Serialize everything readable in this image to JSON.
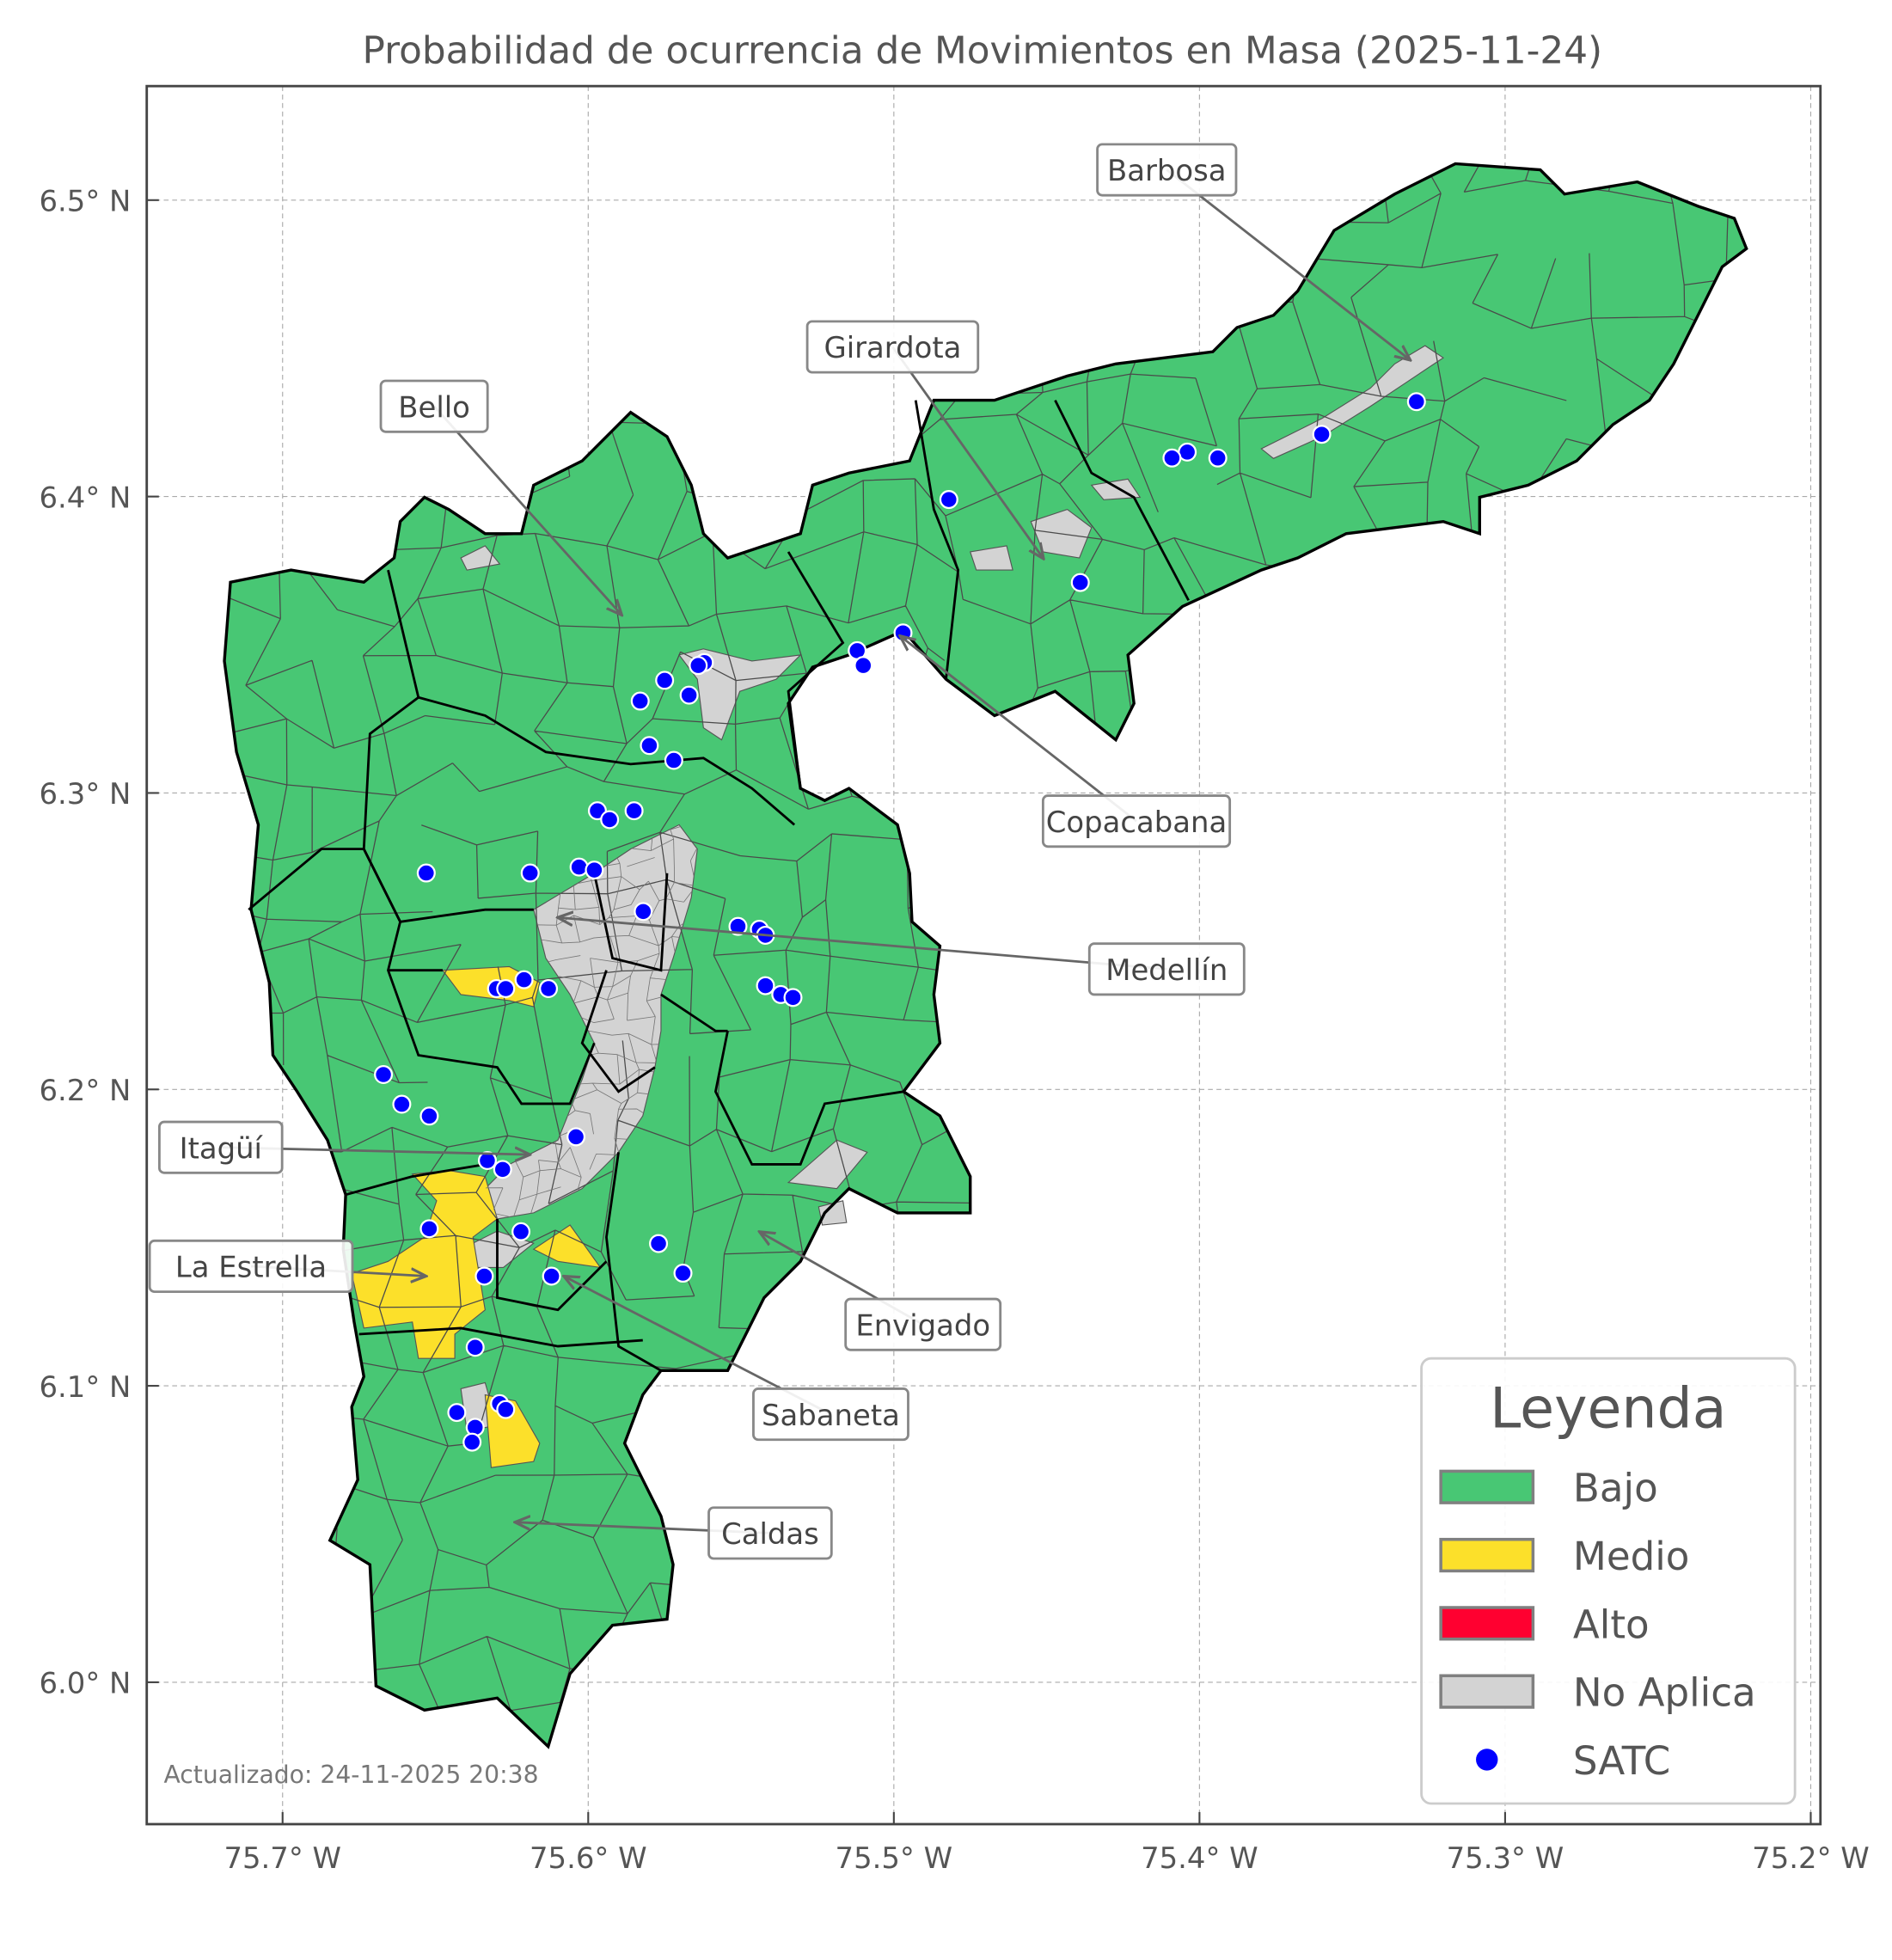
{
  "title": "Probabilidad de ocurrencia de Movimientos en Masa (2025-11-24)",
  "footer": "Actualizado: 24-11-2025 20:38",
  "axes": {
    "xlim": [
      -75.744,
      -75.197
    ],
    "ylim": [
      5.952,
      6.538
    ],
    "grid": true,
    "x_ticks": [
      {
        "value": -75.7,
        "label": "75.7° W"
      },
      {
        "value": -75.6,
        "label": "75.6° W"
      },
      {
        "value": -75.5,
        "label": "75.5° W"
      },
      {
        "value": -75.4,
        "label": "75.4° W"
      },
      {
        "value": -75.3,
        "label": "75.3° W"
      },
      {
        "value": -75.2,
        "label": "75.2° W"
      }
    ],
    "y_ticks": [
      {
        "value": 6.5,
        "label": "6.5° N"
      },
      {
        "value": 6.4,
        "label": "6.4° N"
      },
      {
        "value": 6.3,
        "label": "6.3° N"
      },
      {
        "value": 6.2,
        "label": "6.2° N"
      },
      {
        "value": 6.1,
        "label": "6.1° N"
      },
      {
        "value": 6.0,
        "label": "6.0° N"
      }
    ]
  },
  "legend": {
    "title": "Leyenda",
    "placement": "bottom-right",
    "items": [
      {
        "label": "Bajo",
        "color": "#48c774",
        "type": "patch"
      },
      {
        "label": "Medio",
        "color": "#fce02a",
        "type": "patch"
      },
      {
        "label": "Alto",
        "color": "#ff0030",
        "type": "patch"
      },
      {
        "label": "No Aplica",
        "color": "#d3d3d3",
        "type": "patch"
      },
      {
        "label": "SATC",
        "color": "#0000ff",
        "type": "point"
      }
    ]
  },
  "municipality_labels": [
    {
      "name": "Barbosa",
      "lon": -75.331,
      "lat": 6.446
    },
    {
      "name": "Girardota",
      "lon": -75.451,
      "lat": 6.379
    },
    {
      "name": "Bello",
      "lon": -75.589,
      "lat": 6.36
    },
    {
      "name": "Copacabana",
      "lon": -75.498,
      "lat": 6.353
    },
    {
      "name": "Medellín",
      "lon": -75.61,
      "lat": 6.258
    },
    {
      "name": "Itagüí",
      "lon": -75.619,
      "lat": 6.178
    },
    {
      "name": "La Estrella",
      "lon": -75.653,
      "lat": 6.137
    },
    {
      "name": "Envigado",
      "lon": -75.544,
      "lat": 6.152
    },
    {
      "name": "Sabaneta",
      "lon": -75.608,
      "lat": 6.137
    },
    {
      "name": "Caldas",
      "lon": -75.624,
      "lat": 6.054
    }
  ],
  "satc_points": [
    [
      -75.329,
      6.432
    ],
    [
      -75.36,
      6.421
    ],
    [
      -75.394,
      6.413
    ],
    [
      -75.404,
      6.415
    ],
    [
      -75.409,
      6.413
    ],
    [
      -75.482,
      6.399
    ],
    [
      -75.439,
      6.371
    ],
    [
      -75.497,
      6.354
    ],
    [
      -75.512,
      6.348
    ],
    [
      -75.51,
      6.343
    ],
    [
      -75.562,
      6.344
    ],
    [
      -75.564,
      6.343
    ],
    [
      -75.575,
      6.338
    ],
    [
      -75.583,
      6.331
    ],
    [
      -75.567,
      6.333
    ],
    [
      -75.58,
      6.316
    ],
    [
      -75.572,
      6.311
    ],
    [
      -75.597,
      6.294
    ],
    [
      -75.593,
      6.291
    ],
    [
      -75.585,
      6.294
    ],
    [
      -75.653,
      6.273
    ],
    [
      -75.619,
      6.273
    ],
    [
      -75.603,
      6.275
    ],
    [
      -75.598,
      6.274
    ],
    [
      -75.582,
      6.26
    ],
    [
      -75.551,
      6.255
    ],
    [
      -75.544,
      6.254
    ],
    [
      -75.542,
      6.252
    ],
    [
      -75.542,
      6.235
    ],
    [
      -75.537,
      6.232
    ],
    [
      -75.533,
      6.231
    ],
    [
      -75.621,
      6.237
    ],
    [
      -75.63,
      6.234
    ],
    [
      -75.627,
      6.234
    ],
    [
      -75.613,
      6.234
    ],
    [
      -75.667,
      6.205
    ],
    [
      -75.661,
      6.195
    ],
    [
      -75.652,
      6.191
    ],
    [
      -75.604,
      6.184
    ],
    [
      -75.633,
      6.176
    ],
    [
      -75.628,
      6.173
    ],
    [
      -75.652,
      6.153
    ],
    [
      -75.622,
      6.152
    ],
    [
      -75.577,
      6.148
    ],
    [
      -75.569,
      6.138
    ],
    [
      -75.634,
      6.137
    ],
    [
      -75.612,
      6.137
    ],
    [
      -75.637,
      6.113
    ],
    [
      -75.643,
      6.091
    ],
    [
      -75.629,
      6.094
    ],
    [
      -75.627,
      6.092
    ],
    [
      -75.637,
      6.086
    ],
    [
      -75.638,
      6.081
    ]
  ]
}
